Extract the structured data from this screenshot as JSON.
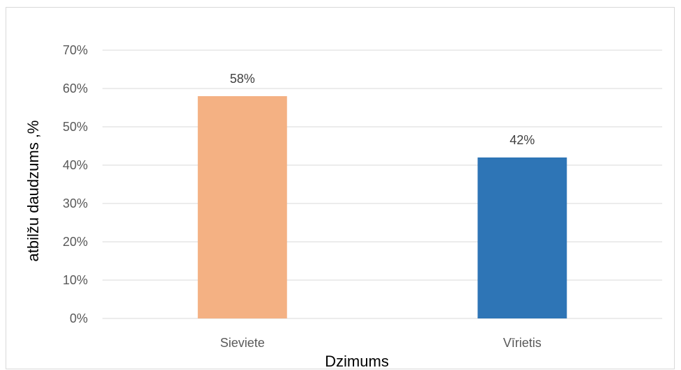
{
  "chart_data": {
    "type": "bar",
    "categories": [
      "Sieviete",
      "Vīrietis"
    ],
    "values": [
      58,
      42
    ],
    "data_labels": [
      "58%",
      "42%"
    ],
    "colors": [
      "#f4b183",
      "#2e75b6"
    ],
    "xlabel": "Dzimums",
    "ylabel": "atbilžu  daudzums ,%",
    "ylim": [
      0,
      70
    ],
    "y_ticks": [
      0,
      10,
      20,
      30,
      40,
      50,
      60,
      70
    ],
    "y_tick_labels": [
      "0%",
      "10%",
      "20%",
      "30%",
      "40%",
      "50%",
      "60%",
      "70%"
    ],
    "grid": true,
    "legend": "none"
  }
}
